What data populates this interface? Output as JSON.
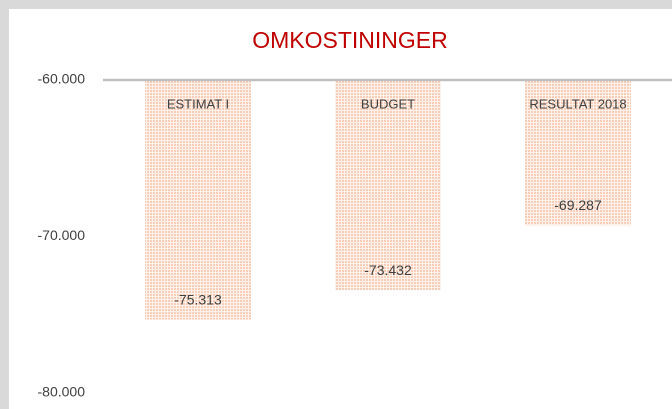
{
  "chart_data": {
    "type": "bar",
    "title": "OMKOSTININGER",
    "categories": [
      "ESTIMAT I",
      "BUDGET",
      "RESULTAT 2018"
    ],
    "values": [
      -75313,
      -73432,
      -69287
    ],
    "value_labels": [
      "-75.313",
      "-73.432",
      "-69.287"
    ],
    "color": "#f4b89a",
    "ylim": [
      -80000,
      -60000
    ],
    "yticks": [
      {
        "value": -80000,
        "label": "-80.000"
      },
      {
        "value": -70000,
        "label": "-70.000"
      },
      {
        "value": -60000,
        "label": "-60.000"
      }
    ],
    "grid": false
  }
}
